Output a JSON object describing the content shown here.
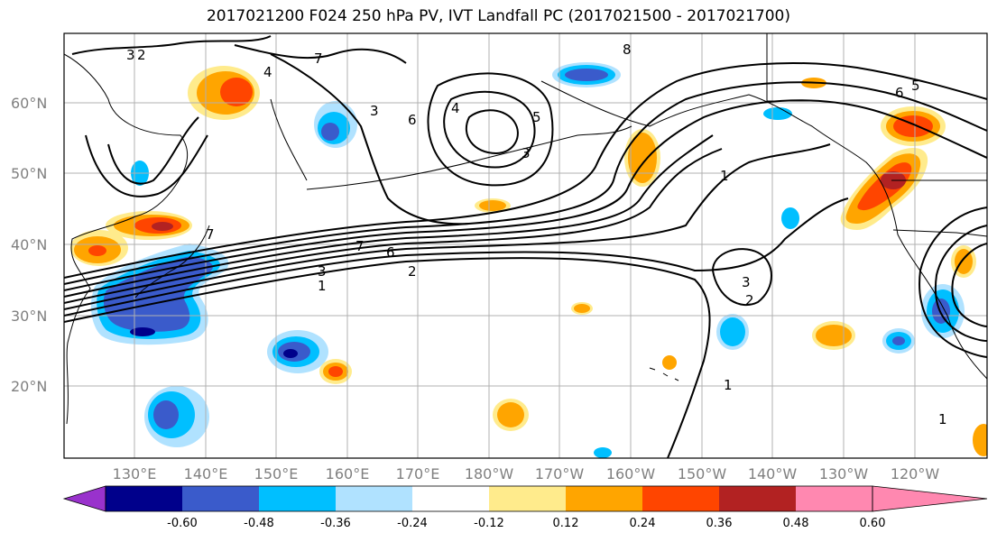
{
  "title": "2017021200 F024 250 hPa PV, IVT Landfall PC (2017021500 - 2017021700)",
  "lat_labels": [
    "60°N",
    "50°N",
    "40°N",
    "30°N",
    "20°N"
  ],
  "lon_labels": [
    "130°E",
    "140°E",
    "150°E",
    "160°E",
    "170°E",
    "180°W",
    "170°W",
    "160°W",
    "150°W",
    "140°W",
    "130°W",
    "120°W"
  ],
  "colorbar": {
    "tick_labels": [
      "-0.60",
      "-0.48",
      "-0.36",
      "-0.24",
      "-0.12",
      "0.12",
      "0.24",
      "0.36",
      "0.48",
      "0.60"
    ],
    "colors": [
      "#9932CC",
      "#00008B",
      "#3A5BCB",
      "#00BFFF",
      "#B0E2FF",
      "#FFFFFF",
      "#FFEB8C",
      "#FFA500",
      "#FF4500",
      "#B22222",
      "#FF88B0"
    ]
  },
  "pv_contour_labels": [
    "1",
    "2",
    "3",
    "4",
    "5",
    "6",
    "7",
    "8"
  ],
  "shading_colors": {
    "strong_neg": "#3A5BCB",
    "mid_neg": "#00BFFF",
    "weak_neg": "#B0E2FF",
    "weak_pos": "#FFEB8C",
    "mid_pos": "#FFA500",
    "strong_pos": "#FF4500",
    "very_strong_pos": "#B22222"
  }
}
